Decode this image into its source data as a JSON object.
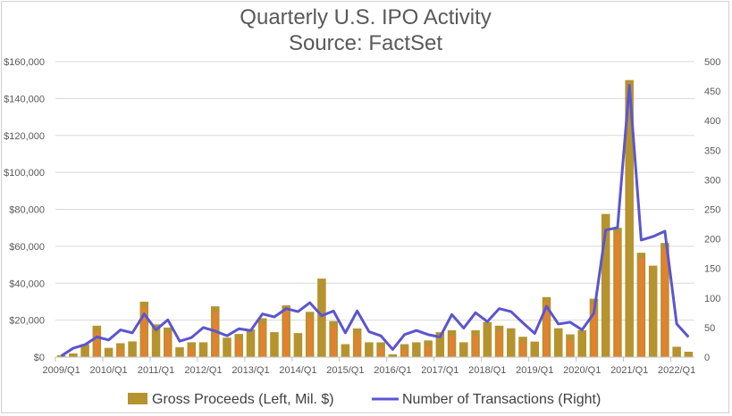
{
  "chart_data": {
    "type": "bar+line",
    "title": "Quarterly U.S. IPO Activity",
    "subtitle": "Source: FactSet",
    "categories": [
      "2009/Q1",
      "2009/Q2",
      "2009/Q3",
      "2009/Q4",
      "2010/Q1",
      "2010/Q2",
      "2010/Q3",
      "2010/Q4",
      "2011/Q1",
      "2011/Q2",
      "2011/Q3",
      "2011/Q4",
      "2012/Q1",
      "2012/Q2",
      "2012/Q3",
      "2012/Q4",
      "2013/Q1",
      "2013/Q2",
      "2013/Q3",
      "2013/Q4",
      "2014/Q1",
      "2014/Q2",
      "2014/Q3",
      "2014/Q4",
      "2015/Q1",
      "2015/Q2",
      "2015/Q3",
      "2015/Q4",
      "2016/Q1",
      "2016/Q2",
      "2016/Q3",
      "2016/Q4",
      "2017/Q1",
      "2017/Q2",
      "2017/Q3",
      "2017/Q4",
      "2018/Q1",
      "2018/Q2",
      "2018/Q3",
      "2018/Q4",
      "2019/Q1",
      "2019/Q2",
      "2019/Q3",
      "2019/Q4",
      "2020/Q1",
      "2020/Q2",
      "2020/Q3",
      "2020/Q4",
      "2021/Q1",
      "2021/Q2",
      "2021/Q3",
      "2021/Q4",
      "2022/Q1",
      "2022/Q2"
    ],
    "x_tick_labels": [
      "2009/Q1",
      "2010/Q1",
      "2011/Q1",
      "2012/Q1",
      "2013/Q1",
      "2014/Q1",
      "2015/Q1",
      "2016/Q1",
      "2017/Q1",
      "2018/Q1",
      "2019/Q1",
      "2020/Q1",
      "2021/Q1",
      "2022/Q1"
    ],
    "y_left": {
      "ylim": [
        0,
        160000
      ],
      "ticks": [
        "$0",
        "$20,000",
        "$40,000",
        "$60,000",
        "$80,000",
        "$100,000",
        "$120,000",
        "$140,000",
        "$160,000"
      ]
    },
    "y_right": {
      "ylim": [
        0,
        500
      ],
      "ticks": [
        "0",
        "50",
        "100",
        "150",
        "200",
        "250",
        "300",
        "350",
        "400",
        "450",
        "500"
      ]
    },
    "grid": true,
    "legend_position": "bottom",
    "series": [
      {
        "name": "Gross Proceeds (Left, Mil. $)",
        "type": "bar",
        "axis": "left",
        "color": "#B5932F",
        "values": [
          1000,
          2000,
          7000,
          17000,
          5000,
          7500,
          8500,
          30000,
          17700,
          16000,
          5300,
          8000,
          8000,
          27500,
          10500,
          12500,
          15000,
          21000,
          13500,
          28000,
          13000,
          24500,
          42500,
          19500,
          7000,
          15500,
          8000,
          8000,
          1500,
          7000,
          8000,
          9000,
          13500,
          14500,
          8000,
          14500,
          19000,
          17000,
          15600,
          11000,
          8400,
          32500,
          15600,
          12300,
          14500,
          31600,
          77500,
          70000,
          150000,
          56500,
          49500,
          61800,
          5600,
          2900
        ]
      },
      {
        "name": "Number of Transactions (Right)",
        "type": "line",
        "axis": "right",
        "color": "#5B55D0",
        "values": [
          2,
          15,
          21,
          34,
          29,
          46,
          41,
          73,
          46,
          63,
          27,
          33,
          50,
          44,
          36,
          48,
          45,
          73,
          68,
          82,
          77,
          92,
          70,
          78,
          41,
          78,
          43,
          36,
          13,
          38,
          45,
          38,
          34,
          72,
          49,
          75,
          60,
          82,
          77,
          58,
          40,
          86,
          56,
          59,
          46,
          74,
          215,
          219,
          460,
          198,
          204,
          213,
          56,
          34
        ]
      }
    ]
  }
}
